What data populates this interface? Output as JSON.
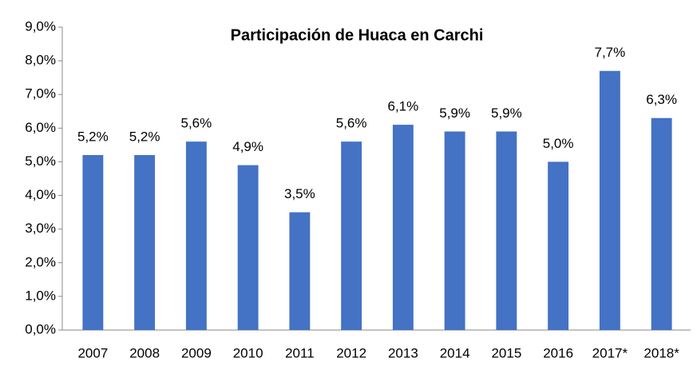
{
  "chart_data": {
    "type": "bar",
    "title": "Participación de Huaca en Carchi",
    "categories": [
      "2007",
      "2008",
      "2009",
      "2010",
      "2011",
      "2012",
      "2013",
      "2014",
      "2015",
      "2016",
      "2017*",
      "2018*"
    ],
    "values": [
      5.2,
      5.2,
      5.6,
      4.9,
      3.5,
      5.6,
      6.1,
      5.9,
      5.9,
      5.0,
      7.7,
      6.3
    ],
    "value_labels": [
      "5,2%",
      "5,2%",
      "5,6%",
      "4,9%",
      "3,5%",
      "5,6%",
      "6,1%",
      "5,9%",
      "5,9%",
      "5,0%",
      "7,7%",
      "6,3%"
    ],
    "color": "#4472c4",
    "ylim": [
      0,
      9
    ],
    "yticks": [
      {
        "value": 0,
        "label": "0,0%"
      },
      {
        "value": 1,
        "label": "1,0%"
      },
      {
        "value": 2,
        "label": "2,0%"
      },
      {
        "value": 3,
        "label": "3,0%"
      },
      {
        "value": 4,
        "label": "4,0%"
      },
      {
        "value": 5,
        "label": "5,0%"
      },
      {
        "value": 6,
        "label": "6,0%"
      },
      {
        "value": 7,
        "label": "7,0%"
      },
      {
        "value": 8,
        "label": "8,0%"
      },
      {
        "value": 9,
        "label": "9,0%"
      }
    ],
    "grid": false
  }
}
